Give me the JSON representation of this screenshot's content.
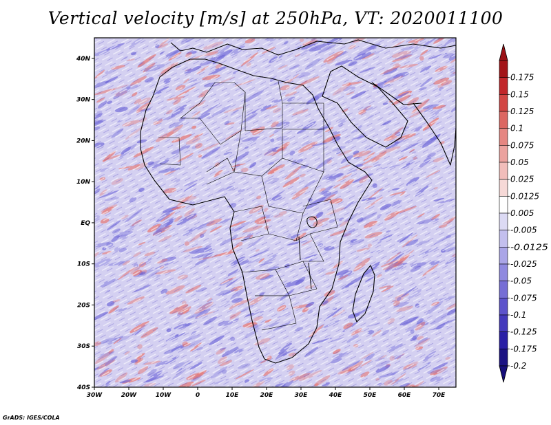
{
  "title": "Vertical velocity [m/s] at 250hPa, VT: 2020011100",
  "footer": "GrADS: IGES/COLA",
  "map": {
    "lon_range": [
      -30,
      75
    ],
    "lat_range": [
      -40,
      45
    ],
    "x_tick_labels": [
      "30W",
      "20W",
      "10W",
      "0",
      "10E",
      "20E",
      "30E",
      "40E",
      "50E",
      "60E",
      "70E"
    ],
    "x_tick_values": [
      -30,
      -20,
      -10,
      0,
      10,
      20,
      30,
      40,
      50,
      60,
      70
    ],
    "y_tick_labels": [
      "40N",
      "30N",
      "20N",
      "10N",
      "EQ",
      "10S",
      "20S",
      "30S",
      "40S"
    ],
    "y_tick_values": [
      40,
      30,
      20,
      10,
      0,
      -10,
      -20,
      -30,
      -40
    ]
  },
  "colorbar": {
    "labels": [
      "0.175",
      "0.15",
      "0.125",
      "0.1",
      "0.075",
      "0.05",
      "0.025",
      "0.0125",
      "0.005",
      "-0.005",
      "-0.0125",
      "-0.025",
      "-0.05",
      "-0.075",
      "-0.1",
      "-0.125",
      "-0.175",
      "-0.2"
    ],
    "colors": [
      "#a31418",
      "#c1262a",
      "#d24644",
      "#dc6762",
      "#e58681",
      "#eba29e",
      "#f1bdba",
      "#f6d9d7",
      "#ffffff",
      "#dcdaf4",
      "#c3bfee",
      "#aaa5e7",
      "#8f89df",
      "#766ed5",
      "#5d53cb",
      "#4439bc",
      "#2a1fa5",
      "#1b1283"
    ],
    "top_arrow_color": "#9b1115",
    "bottom_arrow_color": "#160e7a"
  },
  "field_colors": {
    "positive": "#e8746e",
    "negative": "#7069d9",
    "base": "#d4d0f1"
  }
}
